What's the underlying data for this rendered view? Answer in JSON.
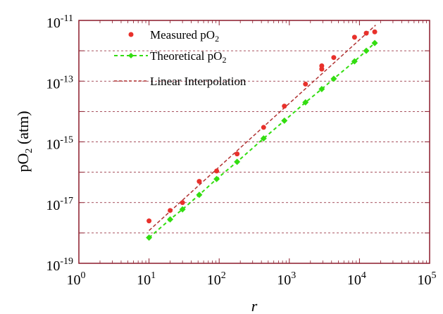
{
  "chart_data": {
    "type": "scatter",
    "x_scale": "log",
    "y_scale": "log",
    "xlim": [
      1,
      100000
    ],
    "ylim": [
      1e-19,
      1e-11
    ],
    "xlabel": "r",
    "ylabel": "pO",
    "ylabel_sub": "2",
    "ylabel_unit": " (atm)",
    "x_ticks": [
      {
        "base": "10",
        "exp": "0",
        "value": 1
      },
      {
        "base": "10",
        "exp": "1",
        "value": 10
      },
      {
        "base": "10",
        "exp": "2",
        "value": 100
      },
      {
        "base": "10",
        "exp": "3",
        "value": 1000
      },
      {
        "base": "10",
        "exp": "4",
        "value": 10000
      },
      {
        "base": "10",
        "exp": "5",
        "value": 100000
      }
    ],
    "y_ticks": [
      {
        "base": "10",
        "exp": "-19",
        "value": 1e-19
      },
      {
        "base": "10",
        "exp": "-17",
        "value": 1e-17
      },
      {
        "base": "10",
        "exp": "-15",
        "value": 1e-15
      },
      {
        "base": "10",
        "exp": "-13",
        "value": 1e-13
      },
      {
        "base": "10",
        "exp": "-11",
        "value": 1e-11
      }
    ],
    "grid": "horizontal dashed at every decade",
    "legend_placement": "top-left",
    "colors": {
      "measured": "#e8312b",
      "theoretical": "#33dd11",
      "interpolation": "#b03030",
      "frame": "#8b1a2a",
      "grid": "#8b1a2a"
    },
    "series": [
      {
        "name": "Measured pO",
        "name_sub": "2",
        "style": "red-dots",
        "points": [
          {
            "x": 10,
            "y": 2.5e-18
          },
          {
            "x": 20,
            "y": 5.5e-18
          },
          {
            "x": 30,
            "y": 1e-17
          },
          {
            "x": 52,
            "y": 5e-17
          },
          {
            "x": 92,
            "y": 1.1e-16
          },
          {
            "x": 180,
            "y": 4e-16
          },
          {
            "x": 430,
            "y": 3e-15
          },
          {
            "x": 850,
            "y": 1.5e-14
          },
          {
            "x": 1700,
            "y": 8e-14
          },
          {
            "x": 2900,
            "y": 2.5e-13
          },
          {
            "x": 2900,
            "y": 3.2e-13
          },
          {
            "x": 4300,
            "y": 6e-13
          },
          {
            "x": 8500,
            "y": 2.8e-12
          },
          {
            "x": 12500,
            "y": 3.8e-12
          },
          {
            "x": 16500,
            "y": 4.2e-12
          }
        ]
      },
      {
        "name": "Theoretical pO",
        "name_sub": "2",
        "style": "green-diamond-dashed",
        "points": [
          {
            "x": 10,
            "y": 7e-19
          },
          {
            "x": 20,
            "y": 2.8e-18
          },
          {
            "x": 30,
            "y": 6e-18
          },
          {
            "x": 52,
            "y": 1.8e-17
          },
          {
            "x": 92,
            "y": 6e-17
          },
          {
            "x": 180,
            "y": 2.2e-16
          },
          {
            "x": 430,
            "y": 1.3e-15
          },
          {
            "x": 850,
            "y": 5e-15
          },
          {
            "x": 1700,
            "y": 2e-14
          },
          {
            "x": 2900,
            "y": 5.5e-14
          },
          {
            "x": 4300,
            "y": 1.2e-13
          },
          {
            "x": 8500,
            "y": 4.5e-13
          },
          {
            "x": 12500,
            "y": 1e-12
          },
          {
            "x": 16500,
            "y": 1.8e-12
          }
        ]
      },
      {
        "name": "Linear Interpolation",
        "style": "dark-red-dashed-line",
        "points": [
          {
            "x": 10,
            "y": 1.2e-18
          },
          {
            "x": 17000,
            "y": 7e-12
          }
        ]
      }
    ]
  }
}
